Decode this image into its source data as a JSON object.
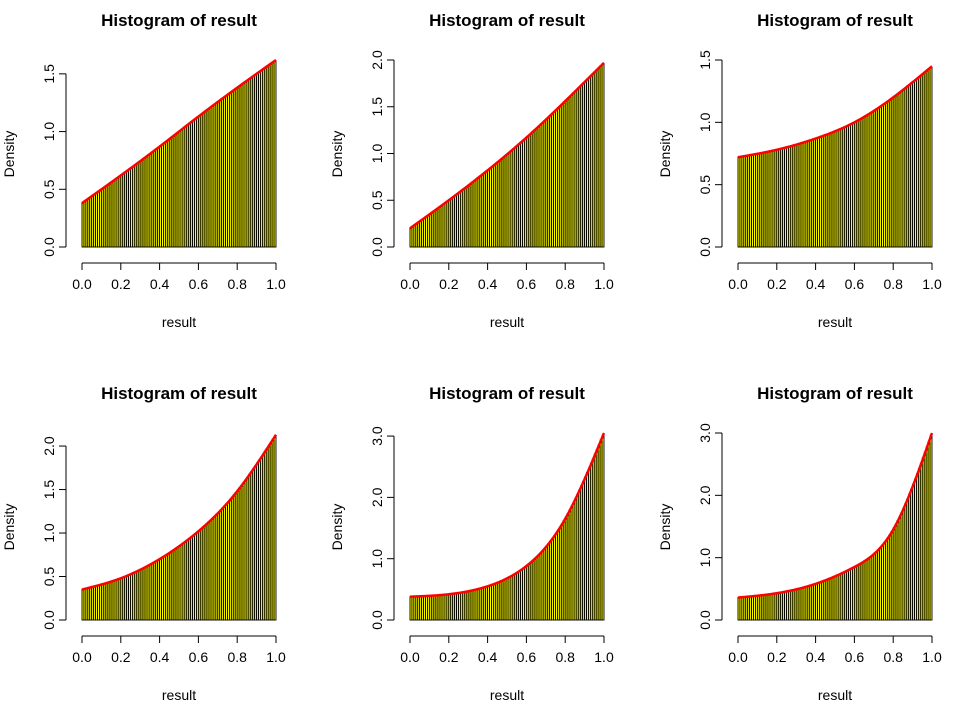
{
  "colors": {
    "bar_fill": "#FFFF00",
    "bar_border": "#000000",
    "curve": "#FF0000",
    "axis": "#000000"
  },
  "chart_data": [
    {
      "type": "bar",
      "title": "Histogram of result",
      "xlabel": "result",
      "ylabel": "Density",
      "xlim": [
        0,
        1
      ],
      "ylim": [
        0,
        1.62
      ],
      "bins": 100,
      "xticks": [
        "0.0",
        "0.2",
        "0.4",
        "0.6",
        "0.8",
        "1.0"
      ],
      "yticks": [
        "0.0",
        "0.5",
        "1.0",
        "1.5"
      ],
      "density_curve": {
        "x": [
          0,
          0.2,
          0.4,
          0.6,
          0.8,
          1.0
        ],
        "y": [
          0.38,
          0.62,
          0.87,
          1.13,
          1.38,
          1.62
        ]
      }
    },
    {
      "type": "bar",
      "title": "Histogram of result",
      "xlabel": "result",
      "ylabel": "Density",
      "xlim": [
        0,
        1
      ],
      "ylim": [
        0,
        2.0
      ],
      "bins": 100,
      "xticks": [
        "0.0",
        "0.2",
        "0.4",
        "0.6",
        "0.8",
        "1.0"
      ],
      "yticks": [
        "0.0",
        "0.5",
        "1.0",
        "1.5",
        "2.0"
      ],
      "density_curve": {
        "x": [
          0,
          0.2,
          0.4,
          0.6,
          0.8,
          1.0
        ],
        "y": [
          0.2,
          0.5,
          0.82,
          1.17,
          1.56,
          1.97
        ]
      }
    },
    {
      "type": "bar",
      "title": "Histogram of result",
      "xlabel": "result",
      "ylabel": "Density",
      "xlim": [
        0,
        1
      ],
      "ylim": [
        0,
        1.5
      ],
      "bins": 100,
      "xticks": [
        "0.0",
        "0.2",
        "0.4",
        "0.6",
        "0.8",
        "1.0"
      ],
      "yticks": [
        "0.0",
        "0.5",
        "1.0",
        "1.5"
      ],
      "density_curve": {
        "x": [
          0,
          0.2,
          0.4,
          0.6,
          0.8,
          1.0
        ],
        "y": [
          0.72,
          0.78,
          0.87,
          1.0,
          1.2,
          1.45
        ]
      }
    },
    {
      "type": "bar",
      "title": "Histogram of result",
      "xlabel": "result",
      "ylabel": "Density",
      "xlim": [
        0,
        1
      ],
      "ylim": [
        0,
        2.15
      ],
      "bins": 100,
      "xticks": [
        "0.0",
        "0.2",
        "0.4",
        "0.6",
        "0.8",
        "1.0"
      ],
      "yticks": [
        "0.0",
        "0.5",
        "1.0",
        "1.5",
        "2.0"
      ],
      "density_curve": {
        "x": [
          0,
          0.2,
          0.4,
          0.6,
          0.8,
          1.0
        ],
        "y": [
          0.35,
          0.48,
          0.7,
          1.02,
          1.48,
          2.13
        ]
      }
    },
    {
      "type": "bar",
      "title": "Histogram of result",
      "xlabel": "result",
      "ylabel": "Density",
      "xlim": [
        0,
        1
      ],
      "ylim": [
        0,
        3.05
      ],
      "bins": 100,
      "xticks": [
        "0.0",
        "0.2",
        "0.4",
        "0.6",
        "0.8",
        "1.0"
      ],
      "yticks": [
        "0.0",
        "1.0",
        "2.0",
        "3.0"
      ],
      "density_curve": {
        "x": [
          0,
          0.2,
          0.4,
          0.6,
          0.8,
          1.0
        ],
        "y": [
          0.38,
          0.42,
          0.55,
          0.88,
          1.65,
          3.05
        ]
      }
    },
    {
      "type": "bar",
      "title": "Histogram of result",
      "xlabel": "result",
      "ylabel": "Density",
      "xlim": [
        0,
        1
      ],
      "ylim": [
        0,
        3.0
      ],
      "bins": 100,
      "xticks": [
        "0.0",
        "0.2",
        "0.4",
        "0.6",
        "0.8",
        "1.0"
      ],
      "yticks": [
        "0.0",
        "1.0",
        "2.0",
        "3.0"
      ],
      "density_curve": {
        "x": [
          0,
          0.2,
          0.4,
          0.6,
          0.8,
          1.0
        ],
        "y": [
          0.36,
          0.43,
          0.58,
          0.85,
          1.45,
          3.0
        ]
      }
    }
  ]
}
